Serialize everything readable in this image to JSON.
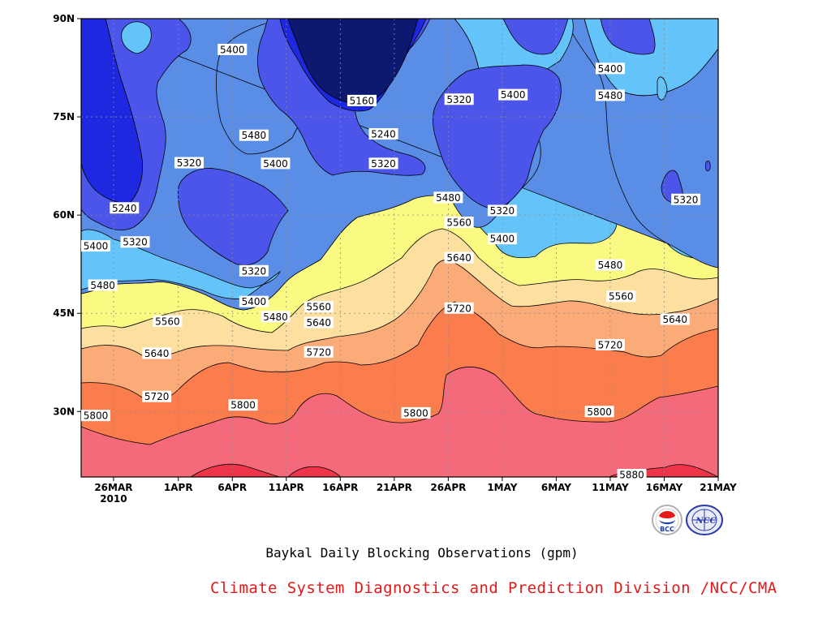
{
  "caption": "Baykal Daily Blocking Observations (gpm)",
  "credit": "Climate System Diagnostics and Prediction Division /NCC/CMA",
  "logos": [
    {
      "name": "bcc-logo",
      "text": "BCC"
    },
    {
      "name": "ncc-logo",
      "text": "NCC"
    }
  ],
  "chart_data": {
    "type": "contour",
    "title": "Baykal Daily Blocking Observations (gpm)",
    "units": "gpm",
    "x_ticks": [
      "26MAR",
      "1APR",
      "6APR",
      "11APR",
      "16APR",
      "21APR",
      "26APR",
      "1MAY",
      "6MAY",
      "11MAY",
      "16MAY",
      "21MAY"
    ],
    "x_sub": "2010",
    "x_range": [
      "2010-03-23",
      "2010-05-21"
    ],
    "y_ticks": [
      "90N",
      "75N",
      "60N",
      "45N",
      "30N"
    ],
    "y_range": [
      20,
      90
    ],
    "grid": "dotted",
    "levels": [
      5160,
      5240,
      5320,
      5400,
      5480,
      5560,
      5640,
      5720,
      5800,
      5880
    ],
    "colors": {
      "below_5160": "#0d1870",
      "5160": "#1e28e0",
      "5240": "#4b55ea",
      "5320": "#5a8de6",
      "5400": "#64c4fa",
      "5480": "#fafa82",
      "5560": "#fde0a0",
      "5640": "#fbab78",
      "5720": "#fb7c4c",
      "5800": "#f56a7a",
      "5880": "#ee3448"
    },
    "contour_labels": [
      {
        "value": "5400",
        "date": "2010-04-06",
        "lat": 85.3
      },
      {
        "value": "5160",
        "date": "2010-04-18",
        "lat": 77.5
      },
      {
        "value": "5320",
        "date": "2010-04-27",
        "lat": 77.7
      },
      {
        "value": "5400",
        "date": "2010-05-02",
        "lat": 78.4
      },
      {
        "value": "5400",
        "date": "2010-05-11",
        "lat": 82.4
      },
      {
        "value": "5480",
        "date": "2010-05-11",
        "lat": 78.3
      },
      {
        "value": "5480",
        "date": "2010-04-08",
        "lat": 72.2
      },
      {
        "value": "5240",
        "date": "2010-04-20",
        "lat": 72.4
      },
      {
        "value": "5320",
        "date": "2010-04-02",
        "lat": 68.0
      },
      {
        "value": "5400",
        "date": "2010-04-10",
        "lat": 67.9
      },
      {
        "value": "5320",
        "date": "2010-04-20",
        "lat": 67.9
      },
      {
        "value": "5480",
        "date": "2010-04-26",
        "lat": 62.7
      },
      {
        "value": "5240",
        "date": "2010-03-27",
        "lat": 61.1
      },
      {
        "value": "5320",
        "date": "2010-05-01",
        "lat": 60.7
      },
      {
        "value": "5320",
        "date": "2010-05-18",
        "lat": 62.4
      },
      {
        "value": "5560",
        "date": "2010-04-27",
        "lat": 58.9
      },
      {
        "value": "5400",
        "date": "2010-05-01",
        "lat": 56.4
      },
      {
        "value": "5400",
        "date": "2010-03-23",
        "lat": 55.3
      },
      {
        "value": "5320",
        "date": "2010-03-28",
        "lat": 55.9
      },
      {
        "value": "5640",
        "date": "2010-04-27",
        "lat": 53.5
      },
      {
        "value": "5480",
        "date": "2010-05-11",
        "lat": 52.4
      },
      {
        "value": "5320",
        "date": "2010-04-08",
        "lat": 51.5
      },
      {
        "value": "5480",
        "date": "2010-03-25",
        "lat": 49.3
      },
      {
        "value": "5560",
        "date": "2010-05-12",
        "lat": 47.6
      },
      {
        "value": "5400",
        "date": "2010-04-08",
        "lat": 46.8
      },
      {
        "value": "5560",
        "date": "2010-04-14",
        "lat": 46.0
      },
      {
        "value": "5720",
        "date": "2010-04-27",
        "lat": 45.8
      },
      {
        "value": "5480",
        "date": "2010-04-10",
        "lat": 44.5
      },
      {
        "value": "5640",
        "date": "2010-05-17",
        "lat": 44.1
      },
      {
        "value": "5560",
        "date": "2010-03-31",
        "lat": 43.8
      },
      {
        "value": "5640",
        "date": "2010-04-14",
        "lat": 43.6
      },
      {
        "value": "5640",
        "date": "2010-03-30",
        "lat": 38.9
      },
      {
        "value": "5720",
        "date": "2010-04-14",
        "lat": 39.1
      },
      {
        "value": "5720",
        "date": "2010-05-11",
        "lat": 40.2
      },
      {
        "value": "5720",
        "date": "2010-03-30",
        "lat": 32.3
      },
      {
        "value": "5800",
        "date": "2010-04-07",
        "lat": 31.0
      },
      {
        "value": "5800",
        "date": "2010-04-23",
        "lat": 29.8
      },
      {
        "value": "5800",
        "date": "2010-05-10",
        "lat": 30.0
      },
      {
        "value": "5800",
        "date": "2010-03-24",
        "lat": 29.4
      },
      {
        "value": "5880",
        "date": "2010-05-13",
        "lat": 20.0
      }
    ]
  }
}
